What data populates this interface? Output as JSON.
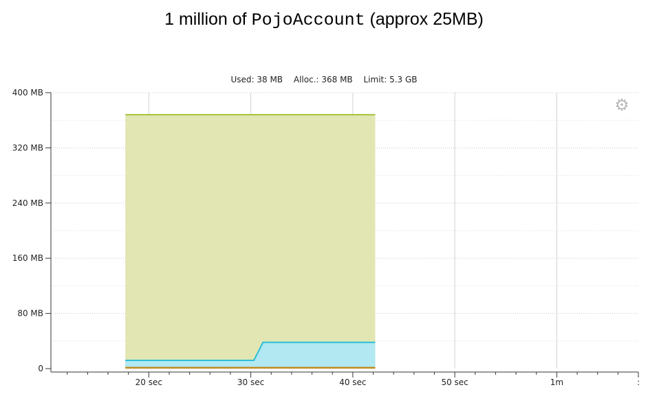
{
  "heading": {
    "prefix": "1 million of ",
    "class_name": "PojoAccount",
    "suffix": " (approx 25MB)"
  },
  "stats": {
    "used": "Used: 38 MB",
    "alloc": "Alloc.: 368 MB",
    "limit": "Limit: 5.3 GB"
  },
  "settings": {
    "icon": "gear-icon",
    "glyph": "⚙"
  },
  "chart_data": {
    "type": "area",
    "x_range_sec": [
      10.4,
      68
    ],
    "ylim": [
      0,
      400
    ],
    "y_ticks": [
      {
        "value": 0,
        "label": "0"
      },
      {
        "value": 80,
        "label": "80 MB"
      },
      {
        "value": 160,
        "label": "160 MB"
      },
      {
        "value": 240,
        "label": "240 MB"
      },
      {
        "value": 320,
        "label": "320 MB"
      },
      {
        "value": 400,
        "label": "400 MB"
      }
    ],
    "x_ticks": [
      {
        "value": 20,
        "label": "20 sec"
      },
      {
        "value": 30,
        "label": "30 sec"
      },
      {
        "value": 40,
        "label": "40 sec"
      },
      {
        "value": 50,
        "label": "50 sec"
      },
      {
        "value": 60,
        "label": "1m"
      },
      {
        "value": 68,
        "label": ":"
      }
    ],
    "grid": true,
    "series": [
      {
        "key": "alloc",
        "color": "#a5c23a",
        "fill": "#e1e6b3",
        "x": [
          17.7,
          42.2
        ],
        "values": [
          368,
          368
        ]
      },
      {
        "key": "used",
        "color": "#2bbfd8",
        "fill": "#b2e8f2",
        "x": [
          17.7,
          30.3,
          31.2,
          42.2
        ],
        "values": [
          12,
          12,
          38,
          38
        ]
      },
      {
        "key": "other",
        "color": "#c38a1f",
        "fill": "#c38a1f",
        "x": [
          17.7,
          42.2
        ],
        "values": [
          1.5,
          1.5
        ]
      }
    ]
  }
}
